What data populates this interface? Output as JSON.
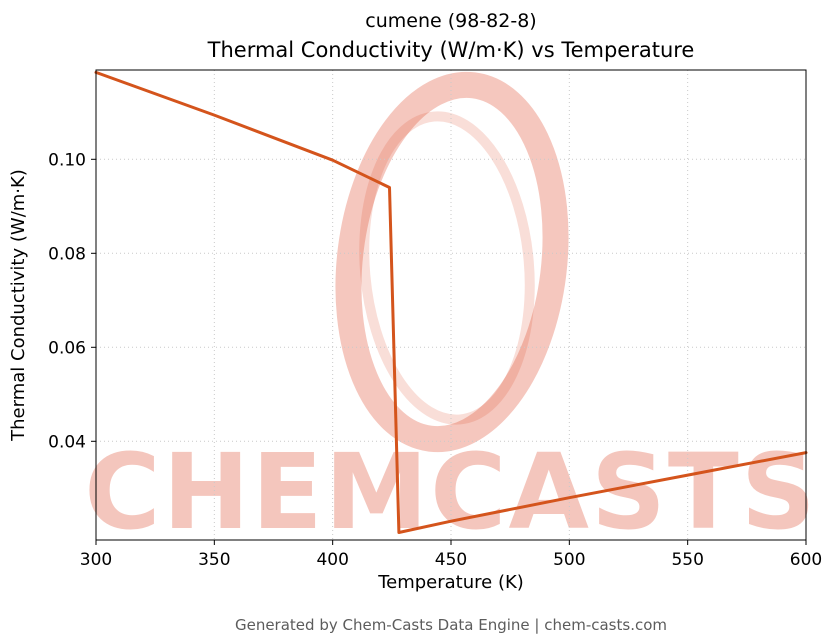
{
  "chart_data": {
    "type": "line",
    "title": "cumene (98-82-8)",
    "subtitle": "Thermal Conductivity (W/m·K) vs Temperature",
    "xlabel": "Temperature (K)",
    "ylabel": "Thermal Conductivity (W/m·K)",
    "xlim": [
      300,
      600
    ],
    "ylim": [
      0.019,
      0.119
    ],
    "xticks": [
      300,
      350,
      400,
      450,
      500,
      550,
      600
    ],
    "yticks": [
      0.04,
      0.06,
      0.08,
      0.1
    ],
    "grid": true,
    "legend": "none",
    "series": [
      {
        "name": "Thermal Conductivity",
        "color": "#d4541c",
        "points": [
          [
            300,
            0.1185
          ],
          [
            350,
            0.1094
          ],
          [
            400,
            0.0998
          ],
          [
            424,
            0.094
          ],
          [
            428,
            0.0206
          ],
          [
            450,
            0.023
          ],
          [
            500,
            0.028
          ],
          [
            550,
            0.0328
          ],
          [
            600,
            0.0376
          ]
        ]
      }
    ]
  },
  "watermark": {
    "text": "CHEMCASTS",
    "color": "#dd4727",
    "text_opacity": 0.3,
    "ring_opacity": 0.3
  },
  "footer": {
    "text": "Generated by Chem-Casts Data Engine | chem-casts.com"
  }
}
